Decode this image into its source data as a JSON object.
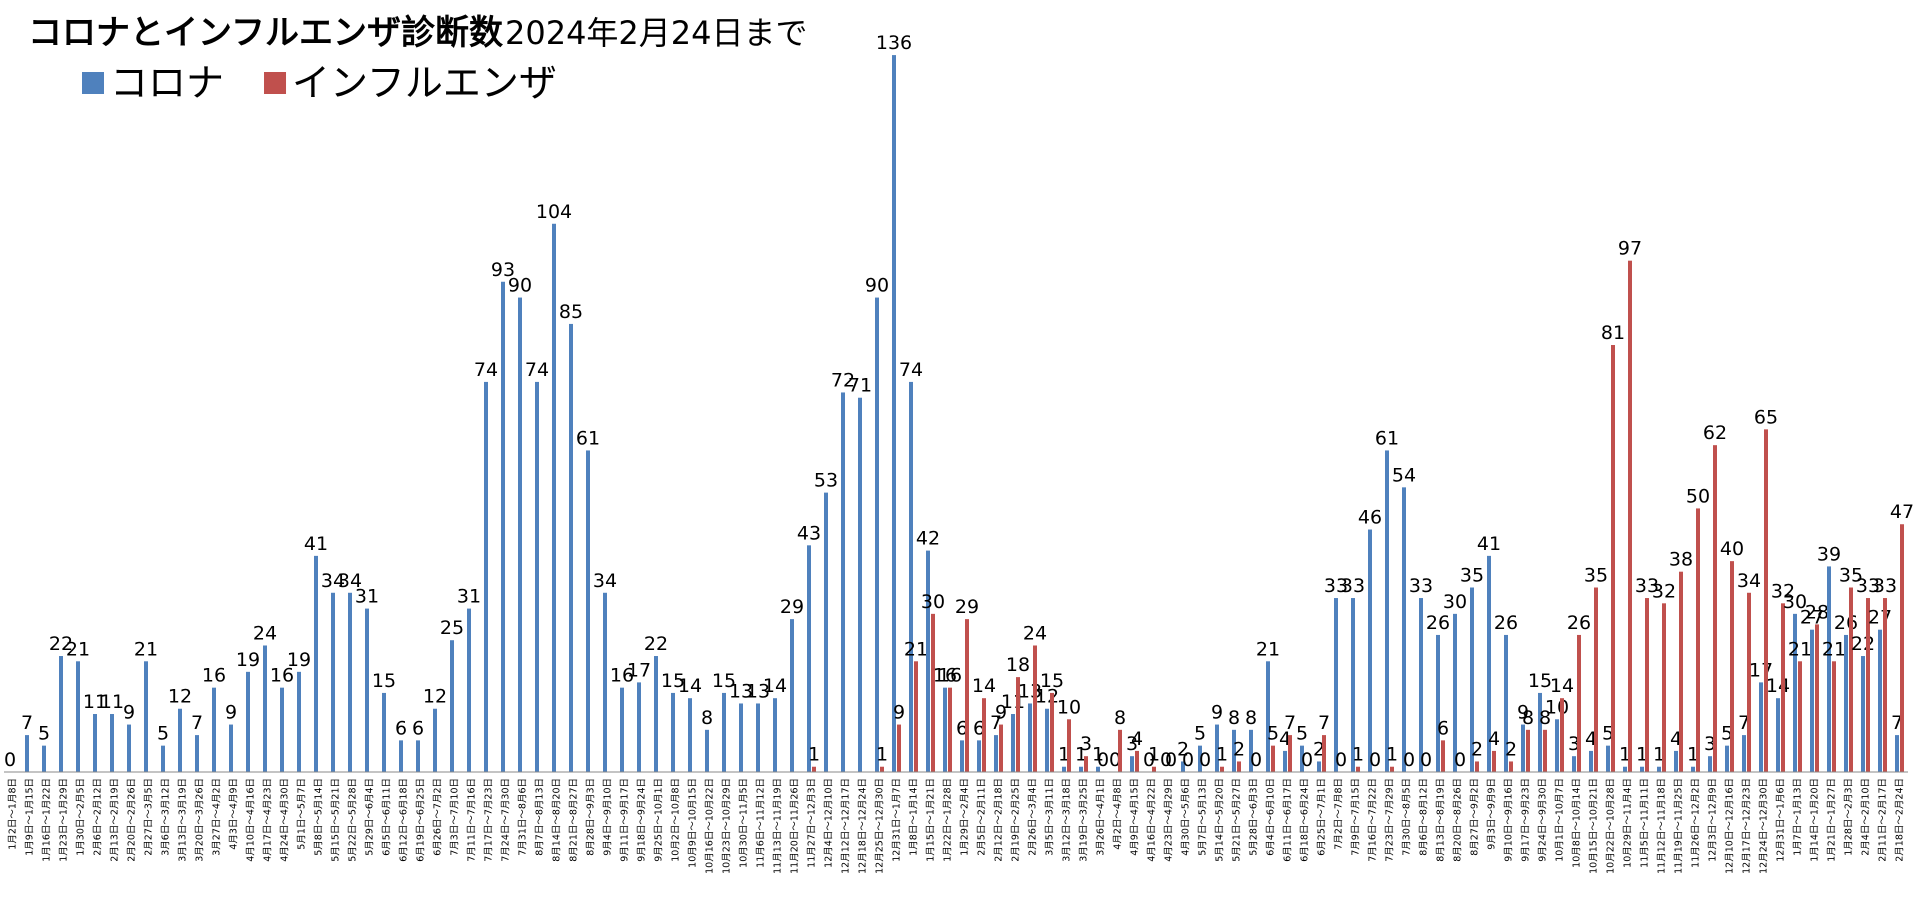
{
  "chart_data": {
    "type": "bar",
    "title": "コロナとインフルエンザ診断数",
    "subtitle": "2024年2月24日まで",
    "categories": [
      "1月2日～1月8日",
      "1月9日～1月15日",
      "1月16日～1月22日",
      "1月23日～1月29日",
      "1月30日～2月5日",
      "2月6日～2月12日",
      "2月13日～2月19日",
      "2月20日～2月26日",
      "2月27日～3月5日",
      "3月6日～3月12日",
      "3月13日～3月19日",
      "3月20日～3月26日",
      "3月27日～4月2日",
      "4月3日～4月9日",
      "4月10日～4月16日",
      "4月17日～4月23日",
      "4月24日～4月30日",
      "5月1日～5月7日",
      "5月8日～5月14日",
      "5月15日～5月21日",
      "5月22日～5月28日",
      "5月29日～6月4日",
      "6月5日～6月11日",
      "6月12日～6月18日",
      "6月19日～6月25日",
      "6月26日～7月2日",
      "7月3日～7月10日",
      "7月11日～7月16日",
      "7月17日～7月23日",
      "7月24日～7月30日",
      "7月31日～8月6日",
      "8月7日～8月13日",
      "8月14日～8月20日",
      "8月21日～8月27日",
      "8月28日～9月3日",
      "9月4日～9月10日",
      "9月11日～9月17日",
      "9月18日～9月24日",
      "9月25日～10月1日",
      "10月2日～10月8日",
      "10月9日～10月15日",
      "10月16日～10月22日",
      "10月23日～10月29日",
      "10月30日～11月5日",
      "11月6日～11月12日",
      "11月13日～11月19日",
      "11月20日～11月26日",
      "11月27日～12月3日",
      "12月4日～12月10日",
      "12月12日～12月17日",
      "12月18日～12月24日",
      "12月25日～12月30日",
      "12月31日～1月7日",
      "1月8日～1月14日",
      "1月15日～1月21日",
      "1月22日～1月28日",
      "1月29日～2月4日",
      "2月5日～2月11日",
      "2月12日～2月18日",
      "2月19日～2月25日",
      "2月26日～3月4日",
      "3月5日～3月11日",
      "3月12日～3月18日",
      "3月19日～3月25日",
      "3月26日～4月1日",
      "4月2日～4月8日",
      "4月9日～4月15日",
      "4月16日～4月22日",
      "4月23日～4月29日",
      "4月30日～5月6日",
      "5月7日～5月13日",
      "5月14日～5月20日",
      "5月21日～5月27日",
      "5月28日～6月3日",
      "6月4日～6月10日",
      "6月11日～6月17日",
      "6月18日～6月24日",
      "6月25日～7月1日",
      "7月2日～7月8日",
      "7月9日～7月15日",
      "7月16日～7月22日",
      "7月23日～7月29日",
      "7月30日～8月5日",
      "8月6日～8月12日",
      "8月13日～8月19日",
      "8月20日～8月26日",
      "8月27日～9月2日",
      "9月3日～9月9日",
      "9月10日～9月16日",
      "9月17日～9月23日",
      "9月24日～9月30日",
      "10月1日～10月7日",
      "10月8日～10月14日",
      "10月15日～10月21日",
      "10月22日～10月28日",
      "10月29日～11月4日",
      "11月5日～11月11日",
      "11月12日～11月18日",
      "11月19日～11月25日",
      "11月26日～12月2日",
      "12月3日～12月9日",
      "12月10日～12月16日",
      "12月17日～12月23日",
      "12月24日～12月30日",
      "12月31日～1月6日",
      "1月7日～1月13日",
      "1月14日～1月20日",
      "1月21日～1月27日",
      "1月28日～2月3日",
      "2月4日～2月10日",
      "2月11日～2月17日",
      "2月18日～2月24日"
    ],
    "series": [
      {
        "name": "コロナ",
        "color": "#4f81bd",
        "values": [
          0,
          7,
          5,
          22,
          21,
          11,
          11,
          9,
          21,
          5,
          12,
          7,
          16,
          9,
          19,
          24,
          16,
          19,
          41,
          34,
          34,
          31,
          15,
          6,
          6,
          12,
          25,
          31,
          74,
          93,
          90,
          74,
          104,
          85,
          61,
          34,
          16,
          17,
          22,
          15,
          14,
          8,
          15,
          13,
          13,
          14,
          29,
          43,
          53,
          72,
          71,
          90,
          136,
          74,
          42,
          16,
          6,
          6,
          7,
          11,
          13,
          12,
          1,
          1,
          1,
          0,
          3,
          0,
          0,
          2,
          5,
          9,
          8,
          8,
          21,
          4,
          5,
          2,
          33,
          33,
          46,
          61,
          54,
          33,
          26,
          30,
          35,
          41,
          26,
          9,
          15,
          10,
          3,
          4,
          5,
          1,
          1,
          1,
          4,
          1,
          3,
          5,
          7,
          17,
          14,
          30,
          27,
          39,
          26,
          22,
          27,
          7
        ]
      },
      {
        "name": "インフルエンザ",
        "color": "#c0504d",
        "values": [
          null,
          null,
          null,
          null,
          null,
          null,
          null,
          null,
          null,
          null,
          null,
          null,
          null,
          null,
          null,
          null,
          null,
          null,
          null,
          null,
          null,
          null,
          null,
          null,
          null,
          null,
          null,
          null,
          null,
          null,
          null,
          null,
          null,
          null,
          null,
          null,
          null,
          null,
          null,
          null,
          null,
          null,
          null,
          null,
          null,
          null,
          null,
          1,
          null,
          null,
          null,
          1,
          9,
          21,
          30,
          16,
          29,
          14,
          9,
          18,
          24,
          15,
          10,
          3,
          0,
          8,
          4,
          1,
          0,
          0,
          0,
          1,
          2,
          0,
          5,
          7,
          0,
          7,
          0,
          1,
          0,
          1,
          0,
          0,
          6,
          0,
          2,
          4,
          2,
          8,
          8,
          14,
          26,
          35,
          81,
          97,
          33,
          32,
          38,
          50,
          62,
          40,
          34,
          65,
          32,
          21,
          28,
          21,
          35,
          33,
          33,
          47
        ]
      }
    ],
    "ylim": [
      0,
      140
    ],
    "legend": "top-left"
  }
}
